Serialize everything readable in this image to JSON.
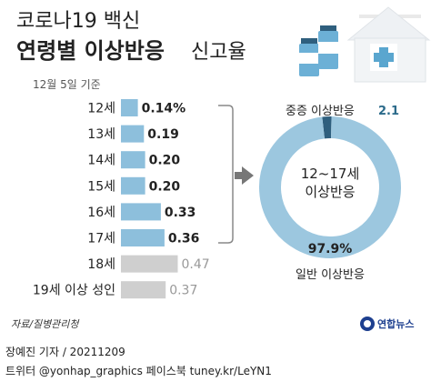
{
  "header": {
    "title_line1": "코로나19 백신",
    "title_line2_bold": "연령별 이상반응",
    "title_line2_normal": "신고율",
    "date": "12월 5일 기준"
  },
  "chart_data": [
    {
      "type": "bar",
      "orientation": "horizontal",
      "categories": [
        "12세",
        "13세",
        "14세",
        "15세",
        "16세",
        "17세",
        "18세",
        "19세 이상 성인"
      ],
      "values": [
        0.14,
        0.19,
        0.2,
        0.2,
        0.33,
        0.36,
        0.47,
        0.37
      ],
      "labels": [
        "0.14%",
        "0.19",
        "0.20",
        "0.20",
        "0.33",
        "0.36",
        "0.47",
        "0.37"
      ],
      "highlight_colors": [
        "#8dbfdc",
        "#8dbfdc",
        "#8dbfdc",
        "#8dbfdc",
        "#8dbfdc",
        "#8dbfdc",
        "#cfcfcf",
        "#cfcfcf"
      ],
      "unit": "%",
      "title": "",
      "xlabel": "",
      "ylabel": ""
    },
    {
      "type": "pie",
      "style": "donut",
      "center_label": [
        "12~17세",
        "이상반응"
      ],
      "slices": [
        {
          "name": "일반 이상반응",
          "value": 97.9,
          "label": "97.9%",
          "color": "#9cc7df"
        },
        {
          "name": "중증 이상반응",
          "value": 2.1,
          "label": "2.1",
          "color": "#2f5f7e"
        }
      ]
    }
  ],
  "footer": {
    "source": "자료/질병관리청",
    "author": "장예진 기자 / 20211209",
    "social": "트위터 @yonhap_graphics  페이스북 tuney.kr/LeYN1",
    "logo_text": "연합뉴스"
  }
}
